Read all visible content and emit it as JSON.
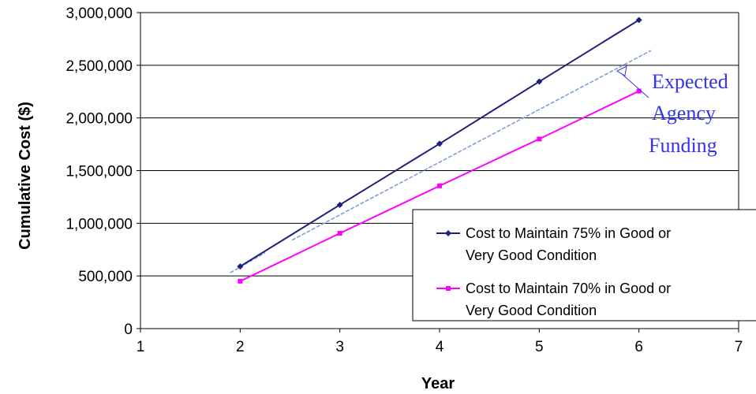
{
  "chart_data": {
    "type": "line",
    "xlabel": "Year",
    "ylabel": "Cumulative Cost ($)",
    "xlim": [
      1,
      7
    ],
    "ylim": [
      0,
      3000000
    ],
    "xticks": [
      "1",
      "2",
      "3",
      "4",
      "5",
      "6",
      "7"
    ],
    "yticks": [
      "0",
      "500,000",
      "1,000,000",
      "1,500,000",
      "2,000,000",
      "2,500,000",
      "3,000,000"
    ],
    "grid": "horizontal",
    "legend_position": "bottom-right",
    "series": [
      {
        "name": "Cost to Maintain 75% in Good or Very Good Condition",
        "name_lines": [
          "Cost to Maintain 75% in Good or",
          "Very Good Condition"
        ],
        "color": "#1f1f7a",
        "marker": "diamond",
        "x": [
          2,
          3,
          4,
          5,
          6
        ],
        "y": [
          590000,
          1175000,
          1755000,
          2345000,
          2930000
        ]
      },
      {
        "name": "Cost to Maintain 70% in Good or Very Good Condition",
        "name_lines": [
          "Cost to Maintain 70% in Good or",
          "Very Good Condition"
        ],
        "color": "#ff00ff",
        "marker": "square",
        "x": [
          2,
          3,
          4,
          5,
          6
        ],
        "y": [
          450000,
          905000,
          1355000,
          1800000,
          2255000
        ]
      }
    ],
    "trendline": {
      "color": "#7f9fd9",
      "style": "dashed",
      "segments": [
        {
          "x": [
            1.9,
            2.25
          ],
          "y": [
            530000,
            720000
          ]
        },
        {
          "x": [
            2.52,
            6.12
          ],
          "y": [
            840000,
            2640000
          ]
        }
      ]
    },
    "annotation": {
      "lines": [
        "Expected",
        "Agency",
        "Funding"
      ],
      "color": "#3333ee",
      "points_to": {
        "x": 5.78,
        "y": 2445000
      }
    }
  }
}
